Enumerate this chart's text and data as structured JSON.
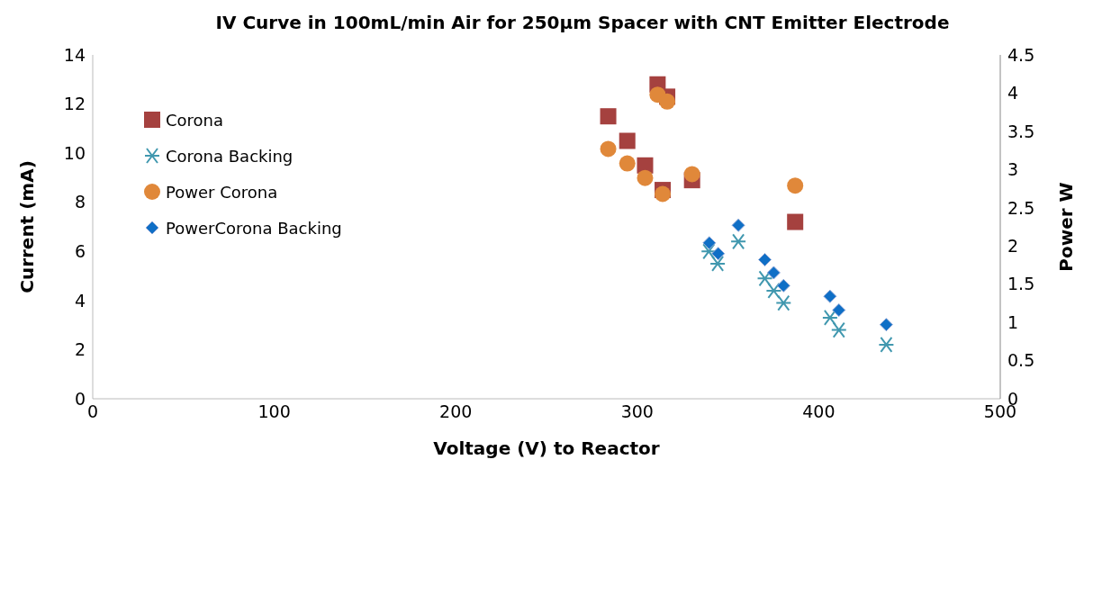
{
  "chart_data": {
    "type": "scatter",
    "title": "IV Curve in 100mL/min Air for 250µm Spacer with CNT Emitter Electrode",
    "xlabel": "Voltage (V) to Reactor",
    "ylabel": "Current (mA)",
    "y2label": "Power W",
    "xlim": [
      0,
      500
    ],
    "xticks": [
      0,
      100,
      200,
      300,
      400,
      500
    ],
    "ylim": [
      0,
      14
    ],
    "yticks": [
      0,
      2,
      4,
      6,
      8,
      10,
      12,
      14
    ],
    "y2lim": [
      0,
      4.5
    ],
    "y2ticks": [
      0,
      0.5,
      1,
      1.5,
      2,
      2.5,
      3,
      3.5,
      4,
      4.5
    ],
    "grid": false,
    "legend": "top left",
    "series": [
      {
        "name": "Corona",
        "color": "#a5413f",
        "marker": "square",
        "x": [
          284,
          294.5,
          304.3,
          311.2,
          314,
          316.5,
          330.2,
          387
        ],
        "values": [
          11.5,
          10.5,
          9.5,
          12.8,
          8.5,
          12.3,
          8.9,
          7.2
        ]
      },
      {
        "name": "Corona Backing",
        "color": "#4198af",
        "marker": "cross",
        "x": [
          339.4,
          344.3,
          355.7,
          370.3,
          375.2,
          380.6,
          406.2,
          411.1,
          437.2
        ],
        "values": [
          6.0,
          5.5,
          6.4,
          4.9,
          4.4,
          3.9,
          3.3,
          2.8,
          2.2
        ]
      },
      {
        "name": "Power Corona",
        "color": "#e0883a",
        "marker": "circle",
        "axis": "y2",
        "x": [
          284,
          294.5,
          304.3,
          311.2,
          314,
          316.5,
          330.2,
          387
        ],
        "values": [
          3.27,
          3.08,
          2.89,
          3.98,
          2.68,
          3.89,
          2.94,
          2.79
        ]
      },
      {
        "name": "PowerCorona Backing",
        "color": "#0f6fc6",
        "marker": "diamond",
        "axis": "y2",
        "x": [
          339.7,
          344.6,
          355.7,
          370.3,
          375.2,
          380.6,
          406.2,
          411.1,
          437.2
        ],
        "values": [
          2.04,
          1.9,
          2.27,
          1.82,
          1.65,
          1.48,
          1.34,
          1.16,
          0.97
        ]
      }
    ]
  }
}
